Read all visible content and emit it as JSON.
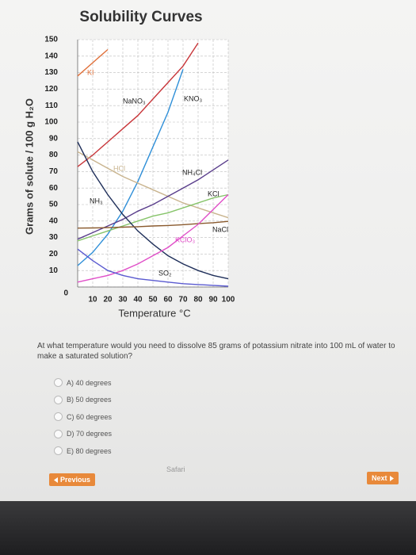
{
  "chart_data": {
    "type": "line",
    "title": "Solubility Curves",
    "y_label": "Grams of solute / 100 g H₂O",
    "x_label": "Temperature °C",
    "x": [
      0,
      10,
      20,
      30,
      40,
      50,
      60,
      70,
      80,
      90,
      100
    ],
    "xlim": [
      0,
      100
    ],
    "xticks": [
      10,
      20,
      30,
      40,
      50,
      60,
      70,
      80,
      90,
      100
    ],
    "ylim": [
      0,
      150
    ],
    "yticks": [
      0,
      10,
      20,
      30,
      40,
      50,
      60,
      70,
      80,
      90,
      100,
      110,
      120,
      130,
      140,
      150
    ],
    "grid": true,
    "series": [
      {
        "name": "KI",
        "color": "#e0703a",
        "values": [
          128,
          136,
          144,
          null,
          null,
          null,
          null,
          null,
          null,
          null,
          null
        ]
      },
      {
        "name": "NaNO₃",
        "color": "#c8363a",
        "values": [
          73,
          80,
          88,
          96,
          104,
          114,
          124,
          134,
          148,
          null,
          null
        ]
      },
      {
        "name": "KNO₃",
        "color": "#2f8fd8",
        "values": [
          13,
          21,
          32,
          46,
          64,
          85,
          106,
          132,
          null,
          null,
          null
        ]
      },
      {
        "name": "HCl",
        "color": "#c9b48e",
        "values": [
          82,
          77,
          72,
          67,
          63,
          59,
          55,
          51,
          48,
          45,
          42
        ]
      },
      {
        "name": "NH₄Cl",
        "color": "#5a3e8c",
        "values": [
          29,
          33,
          37,
          41,
          46,
          50,
          55,
          60,
          65,
          71,
          77
        ]
      },
      {
        "name": "KCl",
        "color": "#86c46a",
        "values": [
          28,
          31,
          34,
          37,
          40,
          43,
          45,
          48,
          51,
          54,
          56
        ]
      },
      {
        "name": "NH₃",
        "color": "#1f2f5a",
        "values": [
          88,
          70,
          56,
          44,
          34,
          26,
          19,
          14,
          10,
          7,
          5
        ]
      },
      {
        "name": "NaCl",
        "color": "#8a5a2e",
        "values": [
          35.7,
          35.8,
          36,
          36.3,
          36.6,
          37,
          37.3,
          37.8,
          38.4,
          39,
          39.8
        ]
      },
      {
        "name": "KClO₃",
        "color": "#e04fc8",
        "values": [
          3,
          5,
          7,
          10,
          14,
          19,
          24,
          31,
          38,
          47,
          56
        ]
      },
      {
        "name": "SO₂",
        "color": "#5a5ad0",
        "values": [
          23,
          16,
          10,
          7,
          5,
          4,
          3,
          2,
          1.5,
          1,
          0.5
        ]
      }
    ]
  },
  "quiz": {
    "question": "At what temperature would you need to dissolve 85 grams of potassium nitrate into 100 mL of water to make a saturated solution?",
    "options": [
      "A) 40 degrees",
      "B) 50 degrees",
      "C) 60 degrees",
      "D) 70 degrees",
      "E) 80 degrees"
    ],
    "previous": "Previous",
    "next": "Next",
    "browser": "Safari"
  }
}
